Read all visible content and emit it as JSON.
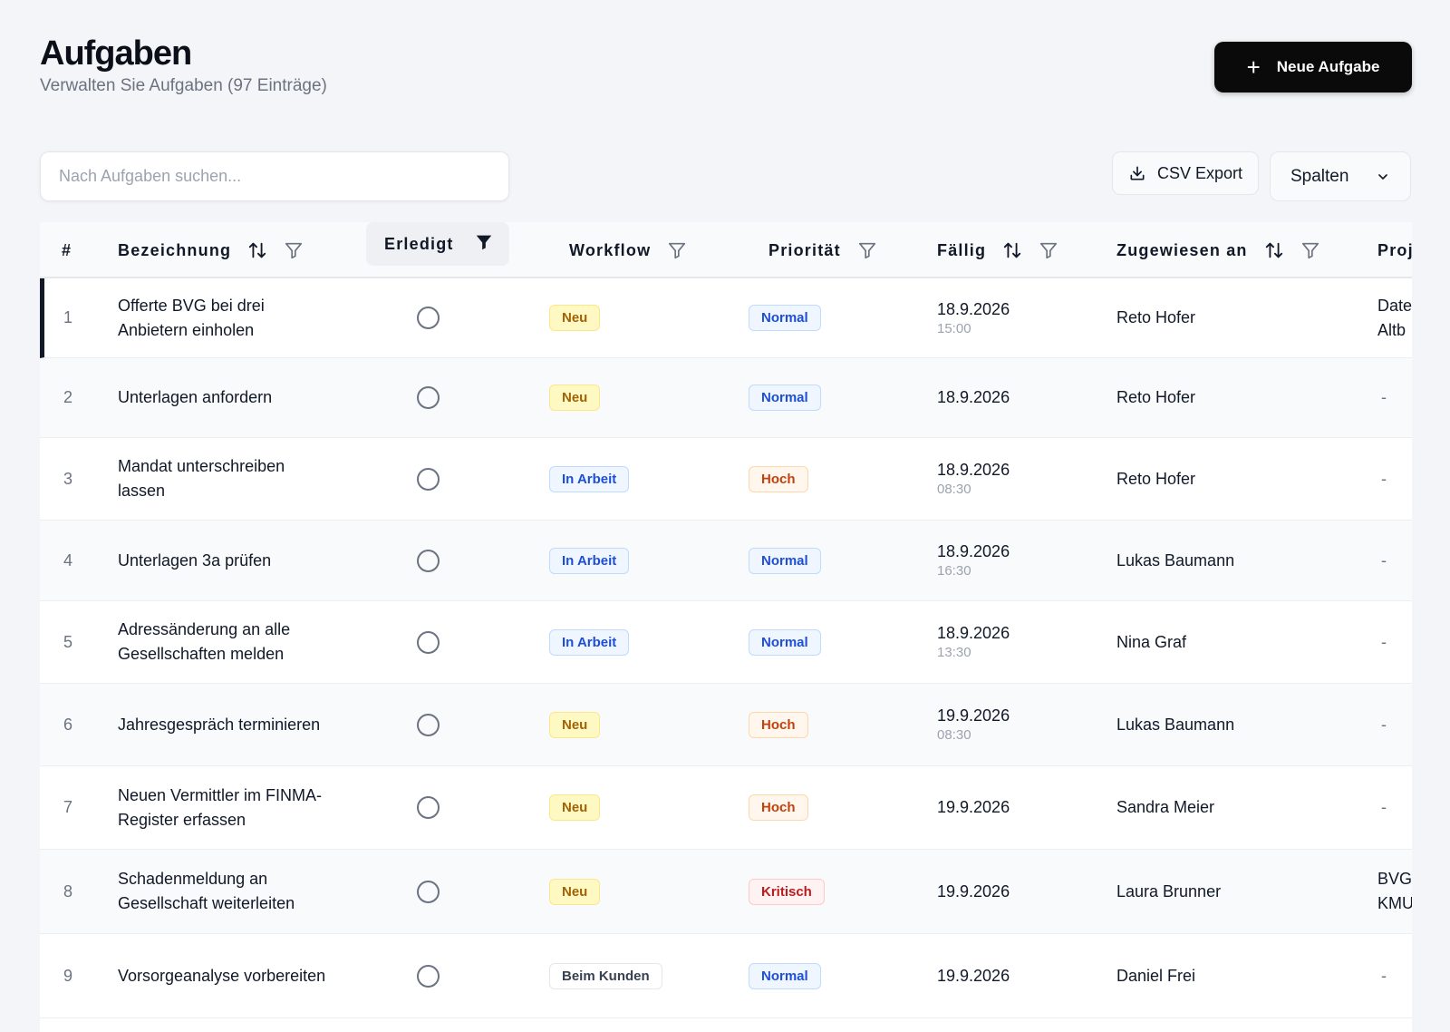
{
  "header": {
    "title": "Aufgaben",
    "subtitle": "Verwalten Sie Aufgaben (97 Einträge)",
    "new_button": "Neue Aufgabe"
  },
  "toolbar": {
    "search_placeholder": "Nach Aufgaben suchen...",
    "csv_export": "CSV Export",
    "columns": "Spalten"
  },
  "table": {
    "columns": {
      "num": "#",
      "bezeichnung": "Bezeichnung",
      "erledigt": "Erledigt",
      "workflow": "Workflow",
      "prioritaet": "Priorität",
      "faellig": "Fällig",
      "zugewiesen": "Zugewiesen an",
      "projekt": "Proj"
    },
    "rows": [
      {
        "num": "1",
        "title": "Offerte BVG bei drei Anbietern einholen",
        "workflow": "Neu",
        "priority": "Normal",
        "date": "18.9.2026",
        "time": "15:00",
        "assignee": "Reto Hofer",
        "project": "Date\nAltb"
      },
      {
        "num": "2",
        "title": "Unterlagen anfordern",
        "workflow": "Neu",
        "priority": "Normal",
        "date": "18.9.2026",
        "time": "",
        "assignee": "Reto Hofer",
        "project": "-"
      },
      {
        "num": "3",
        "title": "Mandat unterschreiben lassen",
        "workflow": "In Arbeit",
        "priority": "Hoch",
        "date": "18.9.2026",
        "time": "08:30",
        "assignee": "Reto Hofer",
        "project": "-"
      },
      {
        "num": "4",
        "title": "Unterlagen 3a prüfen",
        "workflow": "In Arbeit",
        "priority": "Normal",
        "date": "18.9.2026",
        "time": "16:30",
        "assignee": "Lukas Baumann",
        "project": "-"
      },
      {
        "num": "5",
        "title": "Adressänderung an alle Gesellschaften melden",
        "workflow": "In Arbeit",
        "priority": "Normal",
        "date": "18.9.2026",
        "time": "13:30",
        "assignee": "Nina Graf",
        "project": "-"
      },
      {
        "num": "6",
        "title": "Jahresgespräch terminieren",
        "workflow": "Neu",
        "priority": "Hoch",
        "date": "19.9.2026",
        "time": "08:30",
        "assignee": "Lukas Baumann",
        "project": "-"
      },
      {
        "num": "7",
        "title": "Neuen Vermittler im FINMA-Register erfassen",
        "workflow": "Neu",
        "priority": "Hoch",
        "date": "19.9.2026",
        "time": "",
        "assignee": "Sandra Meier",
        "project": "-"
      },
      {
        "num": "8",
        "title": "Schadenmeldung an Gesellschaft weiterleiten",
        "workflow": "Neu",
        "priority": "Kritisch",
        "date": "19.9.2026",
        "time": "",
        "assignee": "Laura Brunner",
        "project": "BVG\nKMU"
      },
      {
        "num": "9",
        "title": "Vorsorgeanalyse vorbereiten",
        "workflow": "Beim Kunden",
        "priority": "Normal",
        "date": "19.9.2026",
        "time": "",
        "assignee": "Daniel Frei",
        "project": "-"
      }
    ]
  },
  "colors": {
    "primary_button": "#0a0a0a",
    "badge_neu": "#fef9c3",
    "badge_in_arbeit": "#eff6ff",
    "badge_hoch": "#fff7ed",
    "badge_kritisch": "#fef2f2"
  }
}
